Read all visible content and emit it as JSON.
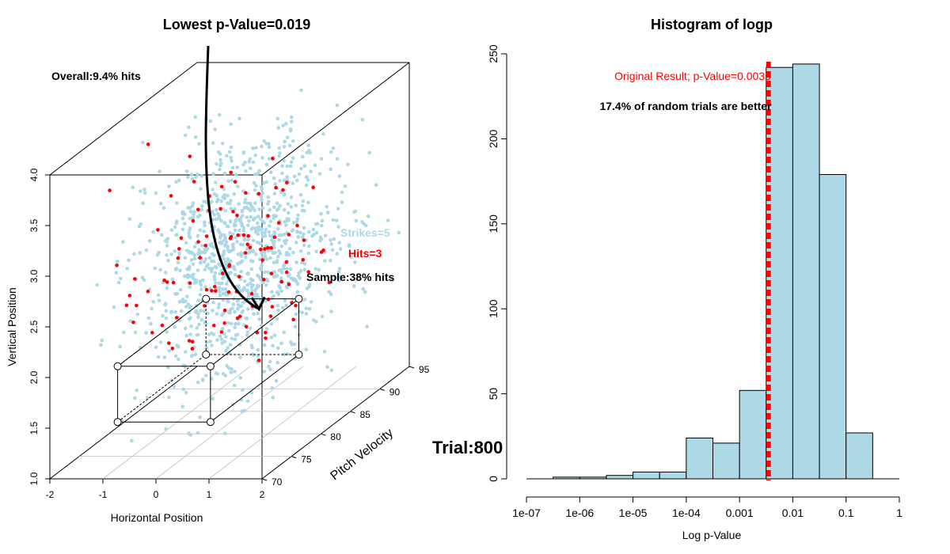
{
  "colors": {
    "strike": "#add8e6",
    "hit": "#ff0000",
    "bar": "#add8e6",
    "line": "#ff0000",
    "text": "#000000"
  },
  "trial_label": "Trial:800",
  "chart_data": [
    {
      "type": "scatter",
      "title": "Lowest p-Value=0.019",
      "xlabel": "Horizontal Position",
      "ylabel": "Vertical Position",
      "zlabel": "Pitch Velocity",
      "xlim": [
        -2,
        2
      ],
      "ylim": [
        1.0,
        4.0
      ],
      "zlim": [
        70,
        95
      ],
      "x_ticks": [
        "-2",
        "-1",
        "0",
        "1",
        "2"
      ],
      "y_ticks": [
        "1.0",
        "1.5",
        "2.0",
        "2.5",
        "3.0",
        "3.5",
        "4.0"
      ],
      "z_ticks": [
        "70",
        "75",
        "80",
        "85",
        "90",
        "95"
      ],
      "annotations": {
        "overall": "Overall:9.4% hits",
        "strikes": "Strikes=5",
        "hits": "Hits=3",
        "sample": "Sample:38% hits"
      },
      "series": [
        {
          "name": "Strikes=5",
          "count": 1100
        },
        {
          "name": "Hits=3",
          "count": 110
        }
      ],
      "selection_box": {
        "x": [
          -1,
          0.75
        ],
        "y": [
          1.45,
          2.0
        ],
        "z": [
          72.5,
          87.5
        ]
      },
      "arrow_target": {
        "x": 0.0,
        "y": 1.9,
        "z": 87.5
      }
    },
    {
      "type": "bar",
      "title": "Histogram of logp",
      "xlabel": "Log p-Value",
      "ylabel": "",
      "xscale": "log",
      "x_ticks": [
        "1e-07",
        "1e-06",
        "1e-05",
        "1e-04",
        "0.001",
        "0.01",
        "0.1",
        "1"
      ],
      "y_ticks": [
        "0",
        "50",
        "100",
        "150",
        "200",
        "250"
      ],
      "ylim": [
        0,
        250
      ],
      "bins": [
        {
          "from": -6.5,
          "to": -6.0,
          "count": 1
        },
        {
          "from": -6.0,
          "to": -5.5,
          "count": 1
        },
        {
          "from": -5.5,
          "to": -5.0,
          "count": 2
        },
        {
          "from": -5.0,
          "to": -4.5,
          "count": 4
        },
        {
          "from": -4.5,
          "to": -4.0,
          "count": 4
        },
        {
          "from": -4.0,
          "to": -3.5,
          "count": 24
        },
        {
          "from": -3.5,
          "to": -3.0,
          "count": 21
        },
        {
          "from": -3.0,
          "to": -2.5,
          "count": 52
        },
        {
          "from": -2.5,
          "to": -2.0,
          "count": 242
        },
        {
          "from": -2.0,
          "to": -1.5,
          "count": 244
        },
        {
          "from": -1.5,
          "to": -1.0,
          "count": 179
        },
        {
          "from": -1.0,
          "to": -0.5,
          "count": 27
        }
      ],
      "reference_line": {
        "value": 0.0035,
        "label": "Original Result; p-Value=0.0035"
      },
      "annotation": "17.4% of random trials are better"
    }
  ]
}
